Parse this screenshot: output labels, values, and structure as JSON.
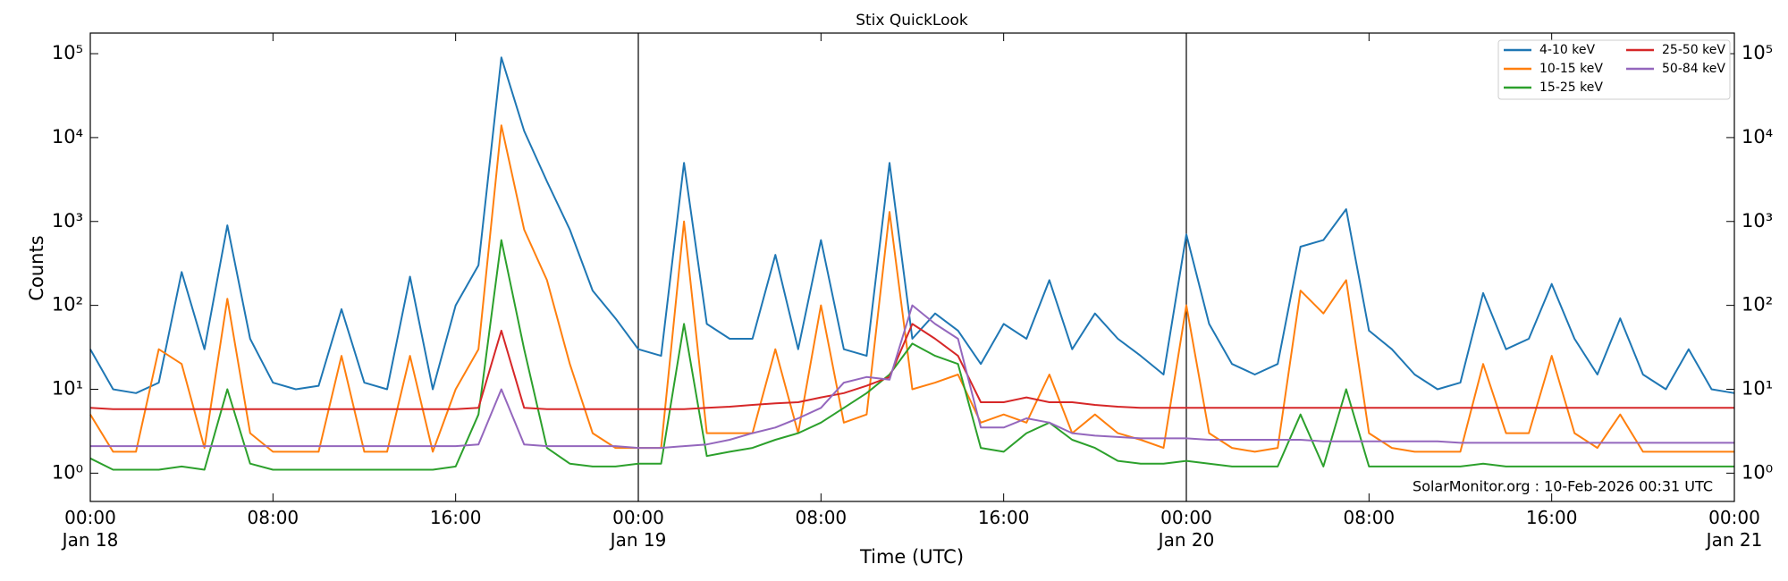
{
  "chart_data": {
    "type": "line",
    "title": "Stix QuickLook",
    "xlabel": "Time (UTC)",
    "ylabel": "Counts",
    "annotation": "SolarMonitor.org : 10-Feb-2026 00:31 UTC",
    "yscale": "log",
    "legend": "upper right",
    "x": [
      "Jan 18 00:00",
      "Jan 18 01:00",
      "Jan 18 02:00",
      "Jan 18 03:00",
      "Jan 18 04:00",
      "Jan 18 05:00",
      "Jan 18 06:00",
      "Jan 18 07:00",
      "Jan 18 08:00",
      "Jan 18 09:00",
      "Jan 18 10:00",
      "Jan 18 11:00",
      "Jan 18 12:00",
      "Jan 18 13:00",
      "Jan 18 14:00",
      "Jan 18 15:00",
      "Jan 18 16:00",
      "Jan 18 17:00",
      "Jan 18 18:00",
      "Jan 18 19:00",
      "Jan 18 20:00",
      "Jan 18 21:00",
      "Jan 18 22:00",
      "Jan 18 23:00",
      "Jan 19 00:00",
      "Jan 19 01:00",
      "Jan 19 02:00",
      "Jan 19 03:00",
      "Jan 19 04:00",
      "Jan 19 05:00",
      "Jan 19 06:00",
      "Jan 19 07:00",
      "Jan 19 08:00",
      "Jan 19 09:00",
      "Jan 19 10:00",
      "Jan 19 11:00",
      "Jan 19 12:00",
      "Jan 19 13:00",
      "Jan 19 14:00",
      "Jan 19 15:00",
      "Jan 19 16:00",
      "Jan 19 17:00",
      "Jan 19 18:00",
      "Jan 19 19:00",
      "Jan 19 20:00",
      "Jan 19 21:00",
      "Jan 19 22:00",
      "Jan 19 23:00",
      "Jan 20 00:00",
      "Jan 20 01:00",
      "Jan 20 02:00",
      "Jan 20 03:00",
      "Jan 20 04:00",
      "Jan 20 05:00",
      "Jan 20 06:00",
      "Jan 20 07:00",
      "Jan 20 08:00",
      "Jan 20 09:00",
      "Jan 20 10:00",
      "Jan 20 11:00",
      "Jan 20 12:00",
      "Jan 20 13:00",
      "Jan 20 14:00",
      "Jan 20 15:00",
      "Jan 20 16:00",
      "Jan 20 17:00",
      "Jan 20 18:00",
      "Jan 20 19:00",
      "Jan 20 20:00",
      "Jan 20 21:00",
      "Jan 20 22:00",
      "Jan 20 23:00",
      "Jan 21 00:00"
    ],
    "series": [
      {
        "name": "4-10 keV",
        "color": "#1f77b4",
        "values": [
          30,
          10,
          9,
          12,
          250,
          30,
          900,
          40,
          12,
          10,
          11,
          90,
          12,
          10,
          220,
          10,
          100,
          300,
          90000,
          12000,
          3000,
          800,
          150,
          70,
          30,
          25,
          5000,
          60,
          40,
          40,
          400,
          30,
          600,
          30,
          25,
          5000,
          40,
          80,
          50,
          20,
          60,
          40,
          200,
          30,
          80,
          40,
          25,
          15,
          700,
          60,
          20,
          15,
          20,
          500,
          600,
          1400,
          50,
          30,
          15,
          10,
          12,
          140,
          30,
          40,
          180,
          40,
          15,
          70,
          15,
          10,
          30,
          10,
          9
        ]
      },
      {
        "name": "10-15 keV",
        "color": "#ff7f0e",
        "values": [
          5,
          1.8,
          1.8,
          30,
          20,
          2,
          120,
          3,
          1.8,
          1.8,
          1.8,
          25,
          1.8,
          1.8,
          25,
          1.8,
          10,
          30,
          14000,
          800,
          200,
          20,
          3,
          2,
          2,
          2,
          1000,
          3,
          3,
          3,
          30,
          3,
          100,
          4,
          5,
          1300,
          10,
          12,
          15,
          4,
          5,
          4,
          15,
          3,
          5,
          3,
          2.5,
          2,
          100,
          3,
          2,
          1.8,
          2,
          150,
          80,
          200,
          3,
          2,
          1.8,
          1.8,
          1.8,
          20,
          3,
          3,
          25,
          3,
          2,
          5,
          1.8,
          1.8,
          1.8,
          1.8,
          1.8
        ]
      },
      {
        "name": "15-25 keV",
        "color": "#2ca02c",
        "values": [
          1.5,
          1.1,
          1.1,
          1.1,
          1.2,
          1.1,
          10,
          1.3,
          1.1,
          1.1,
          1.1,
          1.1,
          1.1,
          1.1,
          1.1,
          1.1,
          1.2,
          5,
          600,
          30,
          2,
          1.3,
          1.2,
          1.2,
          1.3,
          1.3,
          60,
          1.6,
          1.8,
          2,
          2.5,
          3,
          4,
          6,
          9,
          15,
          35,
          25,
          20,
          2,
          1.8,
          3,
          4,
          2.5,
          2,
          1.4,
          1.3,
          1.3,
          1.4,
          1.3,
          1.2,
          1.2,
          1.2,
          5,
          1.2,
          10,
          1.2,
          1.2,
          1.2,
          1.2,
          1.2,
          1.3,
          1.2,
          1.2,
          1.2,
          1.2,
          1.2,
          1.2,
          1.2,
          1.2,
          1.2,
          1.2,
          1.2
        ]
      },
      {
        "name": "25-50 keV",
        "color": "#d62728",
        "values": [
          6,
          5.8,
          5.8,
          5.8,
          5.8,
          5.8,
          5.8,
          5.8,
          5.8,
          5.8,
          5.8,
          5.8,
          5.8,
          5.8,
          5.8,
          5.8,
          5.8,
          6,
          50,
          6,
          5.8,
          5.8,
          5.8,
          5.8,
          5.8,
          5.8,
          5.8,
          6,
          6.2,
          6.5,
          6.8,
          7,
          8,
          9,
          11,
          14,
          60,
          40,
          25,
          7,
          7,
          8,
          7,
          7,
          6.5,
          6.2,
          6,
          6,
          6,
          6,
          6,
          6,
          6,
          6,
          6,
          6,
          6,
          6,
          6,
          6,
          6,
          6,
          6,
          6,
          6,
          6,
          6,
          6,
          6,
          6,
          6,
          6,
          6
        ]
      },
      {
        "name": "50-84 keV",
        "color": "#9467bd",
        "values": [
          2.1,
          2.1,
          2.1,
          2.1,
          2.1,
          2.1,
          2.1,
          2.1,
          2.1,
          2.1,
          2.1,
          2.1,
          2.1,
          2.1,
          2.1,
          2.1,
          2.1,
          2.2,
          10,
          2.2,
          2.1,
          2.1,
          2.1,
          2.1,
          2,
          2,
          2.1,
          2.2,
          2.5,
          3,
          3.5,
          4.5,
          6,
          12,
          14,
          13,
          100,
          60,
          40,
          3.5,
          3.5,
          4.5,
          4,
          3,
          2.8,
          2.7,
          2.6,
          2.6,
          2.6,
          2.5,
          2.5,
          2.5,
          2.5,
          2.5,
          2.4,
          2.4,
          2.4,
          2.4,
          2.4,
          2.4,
          2.3,
          2.3,
          2.3,
          2.3,
          2.3,
          2.3,
          2.3,
          2.3,
          2.3,
          2.3,
          2.3,
          2.3,
          2.3
        ]
      }
    ],
    "xlim": [
      "Jan 18 00:00",
      "Jan 21 00:00"
    ],
    "xticks": [
      {
        "value": "Jan 18 00:00",
        "label": "00:00\nJan 18"
      },
      {
        "value": "Jan 18 08:00",
        "label": "08:00"
      },
      {
        "value": "Jan 18 16:00",
        "label": "16:00"
      },
      {
        "value": "Jan 19 00:00",
        "label": "00:00\nJan 19"
      },
      {
        "value": "Jan 19 08:00",
        "label": "08:00"
      },
      {
        "value": "Jan 19 16:00",
        "label": "16:00"
      },
      {
        "value": "Jan 20 00:00",
        "label": "00:00\nJan 20"
      },
      {
        "value": "Jan 20 08:00",
        "label": "08:00"
      },
      {
        "value": "Jan 20 16:00",
        "label": "16:00"
      },
      {
        "value": "Jan 21 00:00",
        "label": "00:00\nJan 21"
      }
    ],
    "ylim": [
      0.46,
      176000
    ],
    "yticks": [
      {
        "value": 1,
        "label": "10⁰"
      },
      {
        "value": 10,
        "label": "10¹"
      },
      {
        "value": 100,
        "label": "10²"
      },
      {
        "value": 1000,
        "label": "10³"
      },
      {
        "value": 10000,
        "label": "10⁴"
      },
      {
        "value": 100000,
        "label": "10⁵"
      }
    ]
  }
}
